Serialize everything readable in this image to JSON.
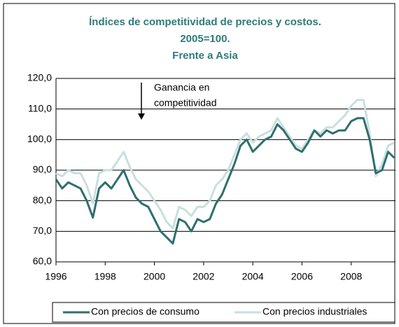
{
  "chart_data": {
    "type": "line",
    "title": [
      "Índices de competitividad de precios y costos.",
      "2005=100.",
      "Frente a Asia"
    ],
    "annotation": [
      "Ganancia en",
      "competitividad"
    ],
    "x": [
      1996,
      1996.25,
      1996.5,
      1996.75,
      1997,
      1997.25,
      1997.5,
      1997.75,
      1998,
      1998.25,
      1998.5,
      1998.75,
      1999,
      1999.25,
      1999.5,
      1999.75,
      2000,
      2000.25,
      2000.5,
      2000.75,
      2001,
      2001.25,
      2001.5,
      2001.75,
      2002,
      2002.25,
      2002.5,
      2002.75,
      2003,
      2003.25,
      2003.5,
      2003.75,
      2004,
      2004.25,
      2004.5,
      2004.75,
      2005,
      2005.25,
      2005.5,
      2005.75,
      2006,
      2006.25,
      2006.5,
      2006.75,
      2007,
      2007.25,
      2007.5,
      2007.75,
      2008,
      2008.25,
      2008.5,
      2008.75,
      2009,
      2009.25,
      2009.5,
      2009.75
    ],
    "series": [
      {
        "name": "Con precios de consumo",
        "color": "#2f6f6f",
        "values": [
          87,
          84,
          86,
          85,
          84,
          80,
          74.5,
          84,
          86,
          84,
          87,
          90,
          85,
          81,
          79,
          78,
          74,
          70,
          68,
          66,
          74,
          73,
          70,
          74,
          73,
          74,
          79,
          82,
          87,
          92,
          98,
          100,
          96,
          98,
          100,
          101,
          105,
          103,
          100,
          97,
          96,
          99,
          103,
          101,
          103,
          102,
          103,
          103,
          106,
          107,
          107,
          100,
          89,
          90,
          96,
          94
        ]
      },
      {
        "name": "Con precios industriales",
        "color": "#c9dfdf",
        "values": [
          89,
          88,
          90,
          89,
          89,
          85,
          79,
          89,
          90,
          90,
          93,
          96,
          91,
          87,
          85,
          83,
          80,
          77,
          73,
          71,
          78,
          77,
          75,
          78,
          78,
          80,
          85,
          87,
          90,
          95,
          100,
          102,
          99,
          101,
          102,
          103,
          107,
          104,
          101,
          98,
          97,
          100,
          103,
          102,
          104,
          104,
          106,
          108,
          111,
          113,
          113,
          102,
          88,
          92,
          98,
          99
        ]
      }
    ],
    "xlim": [
      1996,
      2009.8
    ],
    "xticks": [
      1996,
      1998,
      2000,
      2002,
      2004,
      2006,
      2008
    ],
    "ylim": [
      60,
      120
    ],
    "yticks": [
      {
        "value": 60,
        "label": "60,0"
      },
      {
        "value": 70,
        "label": "70,0"
      },
      {
        "value": 80,
        "label": "80,0"
      },
      {
        "value": 90,
        "label": "90,0"
      },
      {
        "value": 100,
        "label": "100,0"
      },
      {
        "value": 110,
        "label": "110,0"
      },
      {
        "value": 120,
        "label": "120,0"
      }
    ],
    "grid": true
  }
}
